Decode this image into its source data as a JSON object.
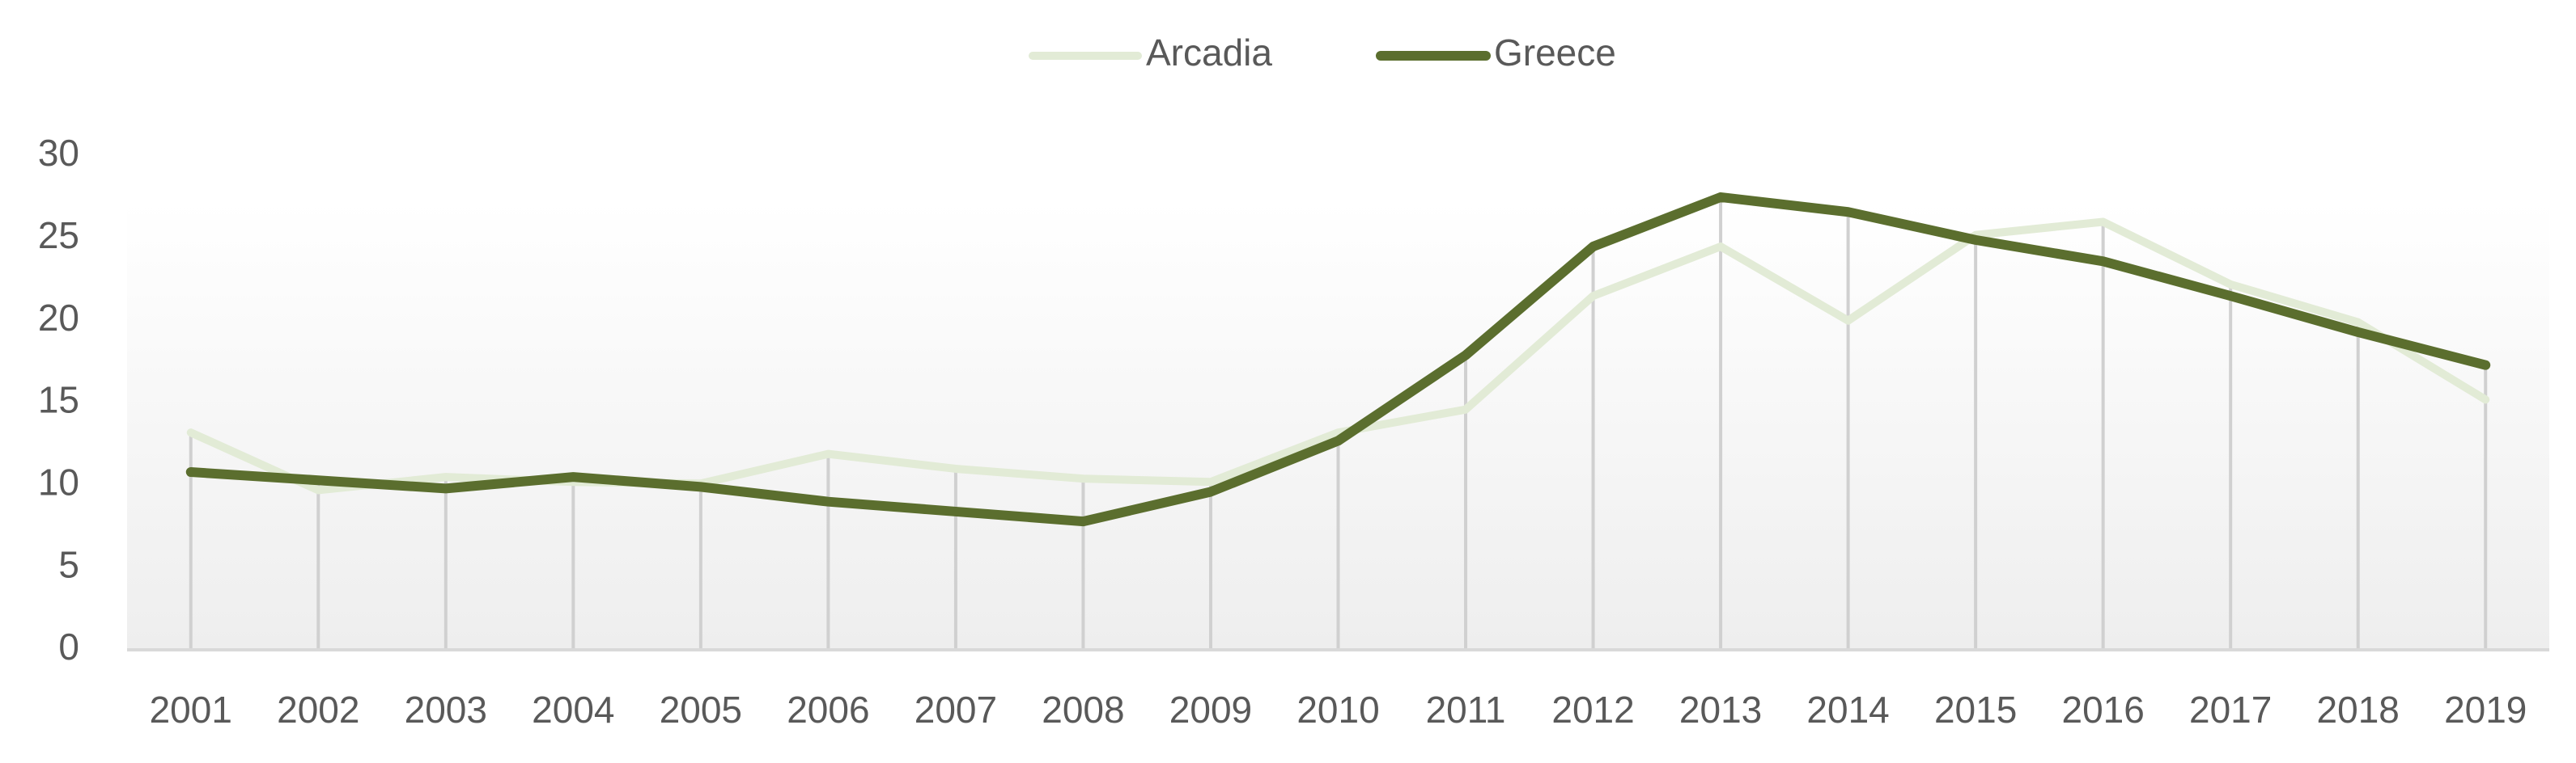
{
  "chart_data": {
    "type": "line",
    "categories": [
      "2001",
      "2002",
      "2003",
      "2004",
      "2005",
      "2006",
      "2007",
      "2008",
      "2009",
      "2010",
      "2011",
      "2012",
      "2013",
      "2014",
      "2015",
      "2016",
      "2017",
      "2018",
      "2019"
    ],
    "series": [
      {
        "name": "Arcadia",
        "color": "#e2ebd6",
        "values": [
          13.2,
          9.7,
          10.5,
          10.2,
          10.1,
          11.9,
          11.0,
          10.4,
          10.2,
          13.2,
          14.6,
          21.5,
          24.5,
          20.0,
          25.2,
          26.0,
          22.2,
          19.9,
          15.2
        ]
      },
      {
        "name": "Greece",
        "color": "#5b6e2e",
        "values": [
          10.8,
          10.3,
          9.8,
          10.5,
          9.9,
          9.0,
          8.4,
          7.8,
          9.6,
          12.7,
          17.9,
          24.5,
          27.5,
          26.6,
          24.9,
          23.6,
          21.5,
          19.3,
          17.3
        ]
      }
    ],
    "ylim": [
      0,
      30
    ],
    "yticks": [
      0,
      5,
      10,
      15,
      20,
      25,
      30
    ],
    "grid": false,
    "legend": "top"
  }
}
